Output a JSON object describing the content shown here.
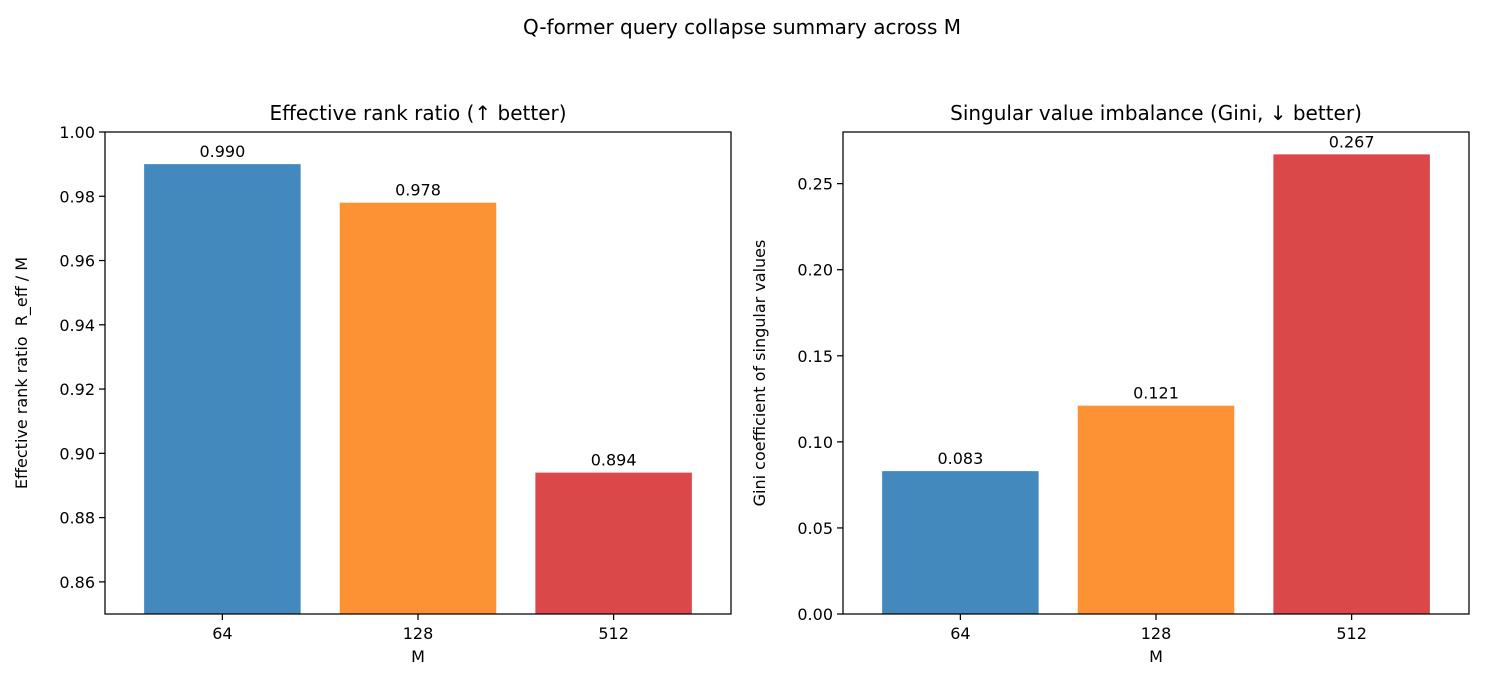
{
  "figure": {
    "suptitle": "Q-former query collapse summary across M"
  },
  "chart_data": [
    {
      "type": "bar",
      "title": "Effective rank ratio (↑ better)",
      "xlabel": "M",
      "ylabel": "Effective rank ratio  R_eff / M",
      "categories": [
        "64",
        "128",
        "512"
      ],
      "values": [
        0.99,
        0.978,
        0.894
      ],
      "value_labels": [
        "0.990",
        "0.978",
        "0.894"
      ],
      "colors": [
        "#4389bd",
        "#fd9234",
        "#db4849"
      ],
      "ylim": [
        0.85,
        1.0
      ],
      "yticks": [
        0.86,
        0.88,
        0.9,
        0.92,
        0.94,
        0.96,
        0.98,
        1.0
      ],
      "ytick_labels": [
        "0.86",
        "0.88",
        "0.90",
        "0.92",
        "0.94",
        "0.96",
        "0.98",
        "1.00"
      ],
      "grid": false,
      "legend": "none"
    },
    {
      "type": "bar",
      "title": "Singular value imbalance (Gini, ↓ better)",
      "xlabel": "M",
      "ylabel": "Gini coefficient of singular values",
      "categories": [
        "64",
        "128",
        "512"
      ],
      "values": [
        0.083,
        0.121,
        0.267
      ],
      "value_labels": [
        "0.083",
        "0.121",
        "0.267"
      ],
      "colors": [
        "#4389bd",
        "#fd9234",
        "#db4849"
      ],
      "ylim": [
        0.0,
        0.28
      ],
      "yticks": [
        0.0,
        0.05,
        0.1,
        0.15,
        0.2,
        0.25
      ],
      "ytick_labels": [
        "0.00",
        "0.05",
        "0.10",
        "0.15",
        "0.20",
        "0.25"
      ],
      "grid": false,
      "legend": "none"
    }
  ]
}
